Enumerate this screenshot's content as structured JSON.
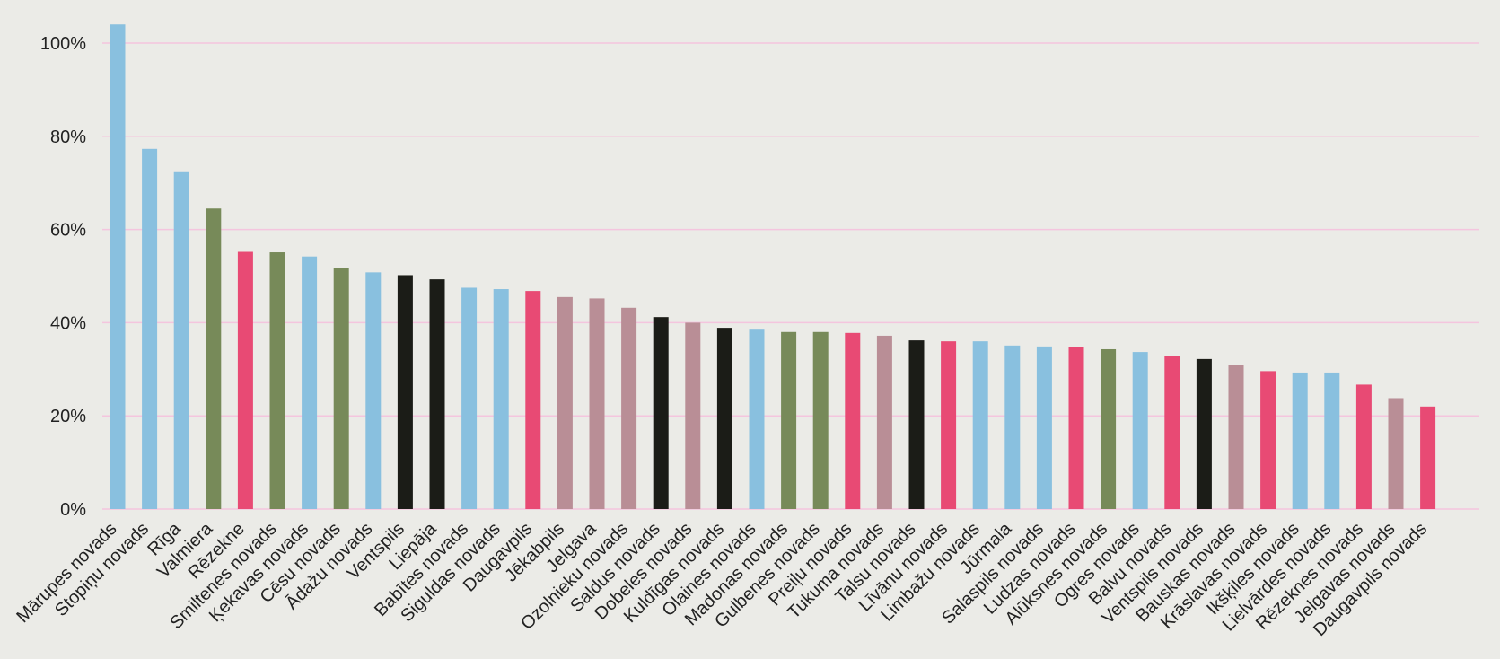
{
  "chart_data": {
    "type": "bar",
    "title": "",
    "xlabel": "",
    "ylabel": "",
    "ylim": [
      0,
      105
    ],
    "yticks": [
      0,
      20,
      40,
      60,
      80,
      100
    ],
    "ytick_labels": [
      "0%",
      "20%",
      "40%",
      "60%",
      "80%",
      "100%"
    ],
    "grid": true,
    "legend": "none",
    "colors": {
      "blue": "#89c0df",
      "green": "#778a59",
      "pink": "#e84a74",
      "black": "#1b1c17",
      "mauve": "#b98e96",
      "grid": "#f4c5de"
    },
    "categories": [
      "Mārupes novads",
      "Stopiņu novads",
      "Rīga",
      "Valmiera",
      "Rēzekne",
      "Smiltenes novads",
      "Ķekavas novads",
      "Cēsu novads",
      "Ādažu novads",
      "Ventspils",
      "Liepāja",
      "Babītes novads",
      "Siguldas novads",
      "Daugavpils",
      "Jēkabpils",
      "Jelgava",
      "Ozolnieku novads",
      "Saldus novads",
      "Dobeles novads",
      "Kuldīgas novads",
      "Olaines novads",
      "Madonas novads",
      "Gulbenes novads",
      "Preiļu novads",
      "Tukuma novads",
      "Talsu novads",
      "Līvānu novads",
      "Limbažu novads",
      "Jūrmala",
      "Salaspils novads",
      "Ludzas novads",
      "Alūksnes novads",
      "Ogres novads",
      "Balvu novads",
      "Ventspils novads",
      "Bauskas novads",
      "Krāslavas novads",
      "Ikšķiles novads",
      "Lielvārdes novads",
      "Rēzeknes novads",
      "Jelgavas novads",
      "Daugavpils novads"
    ],
    "values": [
      104,
      77.3,
      72.3,
      64.5,
      55.2,
      55.1,
      54.2,
      51.8,
      50.8,
      50.2,
      49.3,
      47.5,
      47.2,
      46.8,
      45.5,
      45.2,
      43.2,
      41.2,
      40.0,
      38.9,
      38.5,
      38.0,
      38.0,
      37.8,
      37.2,
      36.2,
      36.0,
      36.0,
      35.1,
      34.9,
      34.8,
      34.3,
      33.7,
      32.9,
      32.2,
      31.0,
      29.6,
      29.3,
      29.3,
      26.7,
      23.8,
      22.0
    ],
    "bar_colors": [
      "blue",
      "blue",
      "blue",
      "green",
      "pink",
      "green",
      "blue",
      "green",
      "blue",
      "black",
      "black",
      "blue",
      "blue",
      "pink",
      "mauve",
      "mauve",
      "mauve",
      "black",
      "mauve",
      "black",
      "blue",
      "green",
      "green",
      "pink",
      "mauve",
      "black",
      "pink",
      "blue",
      "blue",
      "blue",
      "pink",
      "green",
      "blue",
      "pink",
      "black",
      "mauve",
      "pink",
      "blue",
      "blue",
      "pink",
      "mauve",
      "pink"
    ]
  }
}
